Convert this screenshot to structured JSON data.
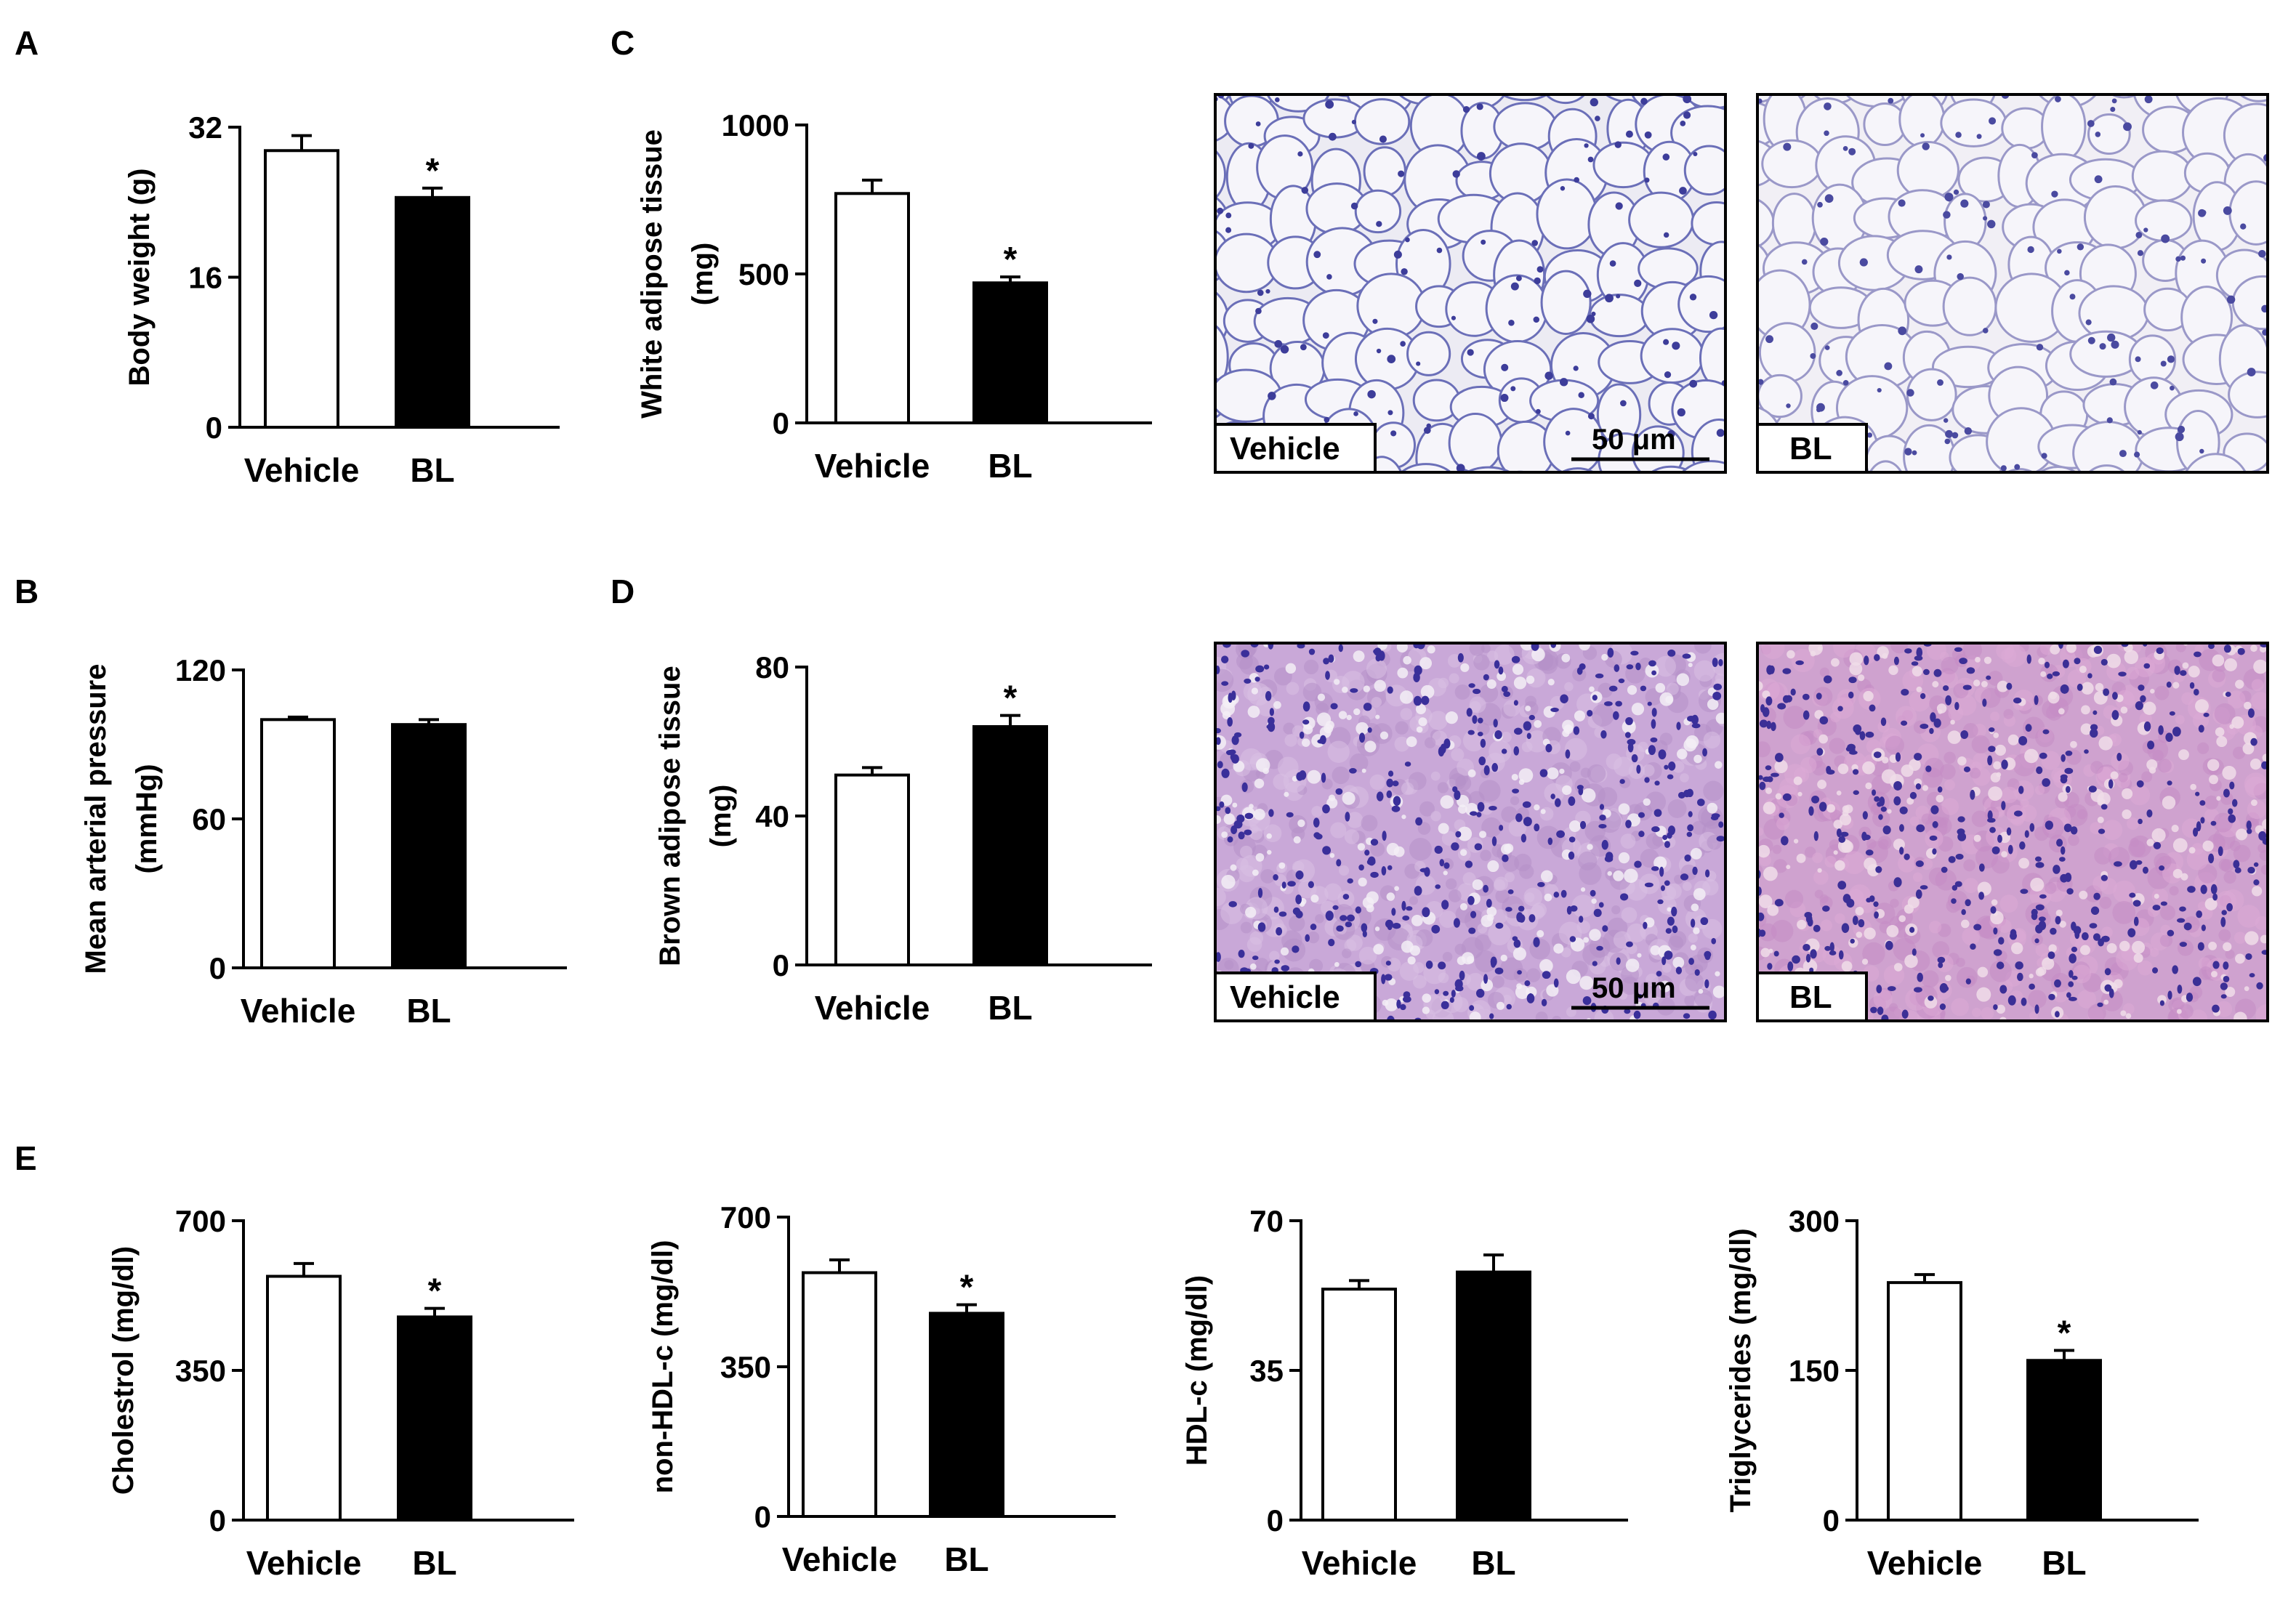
{
  "panel_letters": {
    "A": "A",
    "B": "B",
    "C": "C",
    "D": "D",
    "E": "E"
  },
  "colors": {
    "vehicle_bar": "#ffffff",
    "bl_bar": "#000000",
    "axis": "#000000"
  },
  "chart_data": [
    {
      "id": "A",
      "type": "bar",
      "categories": [
        "Vehicle",
        "BL"
      ],
      "values": [
        29.5,
        24.5
      ],
      "errors": [
        1.6,
        1.0
      ],
      "ylabel": "Body weight (g)",
      "ylim": [
        0,
        32
      ],
      "yticks": [
        "0",
        "16",
        "32"
      ],
      "annotations": [
        "",
        "*"
      ]
    },
    {
      "id": "B",
      "type": "bar",
      "categories": [
        "Vehicle",
        "BL"
      ],
      "values": [
        100,
        98
      ],
      "errors": [
        1,
        2
      ],
      "ylabel": "Mean arterial pressure",
      "ylabel2": "(mmHg)",
      "ylim": [
        0,
        120
      ],
      "yticks": [
        "0",
        "60",
        "120"
      ],
      "annotations": [
        "",
        ""
      ]
    },
    {
      "id": "C",
      "type": "bar",
      "categories": [
        "Vehicle",
        "BL"
      ],
      "values": [
        770,
        470
      ],
      "errors": [
        45,
        20
      ],
      "ylabel": "White adipose tissue",
      "ylabel2": "(mg)",
      "ylim": [
        0,
        1000
      ],
      "yticks": [
        "0",
        "500",
        "1000"
      ],
      "annotations": [
        "",
        "*"
      ]
    },
    {
      "id": "D",
      "type": "bar",
      "categories": [
        "Vehicle",
        "BL"
      ],
      "values": [
        51,
        64
      ],
      "errors": [
        2,
        3
      ],
      "ylabel": "Brown adipose tissue",
      "ylabel2": "(mg)",
      "ylim": [
        0,
        80
      ],
      "yticks": [
        "0",
        "40",
        "80"
      ],
      "annotations": [
        "",
        "*"
      ]
    },
    {
      "id": "E1",
      "type": "bar",
      "categories": [
        "Vehicle",
        "BL"
      ],
      "values": [
        570,
        475
      ],
      "errors": [
        30,
        20
      ],
      "ylabel": "Cholestrol (mg/dl)",
      "ylim": [
        0,
        700
      ],
      "yticks": [
        "0",
        "350",
        "700"
      ],
      "annotations": [
        "",
        "*"
      ]
    },
    {
      "id": "E2",
      "type": "bar",
      "categories": [
        "Vehicle",
        "BL"
      ],
      "values": [
        570,
        475
      ],
      "errors": [
        30,
        20
      ],
      "ylabel": "non-HDL-c (mg/dl)",
      "ylim": [
        0,
        700
      ],
      "yticks": [
        "0",
        "350",
        "700"
      ],
      "annotations": [
        "",
        "*"
      ]
    },
    {
      "id": "E3",
      "type": "bar",
      "categories": [
        "Vehicle",
        "BL"
      ],
      "values": [
        54,
        58
      ],
      "errors": [
        2,
        4
      ],
      "ylabel": "HDL-c (mg/dl)",
      "ylim": [
        0,
        70
      ],
      "yticks": [
        "0",
        "35",
        "70"
      ],
      "annotations": [
        "",
        ""
      ]
    },
    {
      "id": "E4",
      "type": "bar",
      "categories": [
        "Vehicle",
        "BL"
      ],
      "values": [
        238,
        160
      ],
      "errors": [
        8,
        10
      ],
      "ylabel": "Triglycerides (mg/dl)",
      "ylim": [
        0,
        300
      ],
      "yticks": [
        "0",
        "150",
        "300"
      ],
      "annotations": [
        "",
        "*"
      ]
    }
  ],
  "micrographs": [
    {
      "id": "C-vehicle",
      "badge": "Vehicle",
      "scale_bar": "50 μm",
      "stain": "white"
    },
    {
      "id": "C-bl",
      "badge": "BL",
      "scale_bar": "",
      "stain": "white"
    },
    {
      "id": "D-vehicle",
      "badge": "Vehicle",
      "scale_bar": "50 μm",
      "stain": "brown"
    },
    {
      "id": "D-bl",
      "badge": "BL",
      "scale_bar": "",
      "stain": "brown"
    }
  ]
}
